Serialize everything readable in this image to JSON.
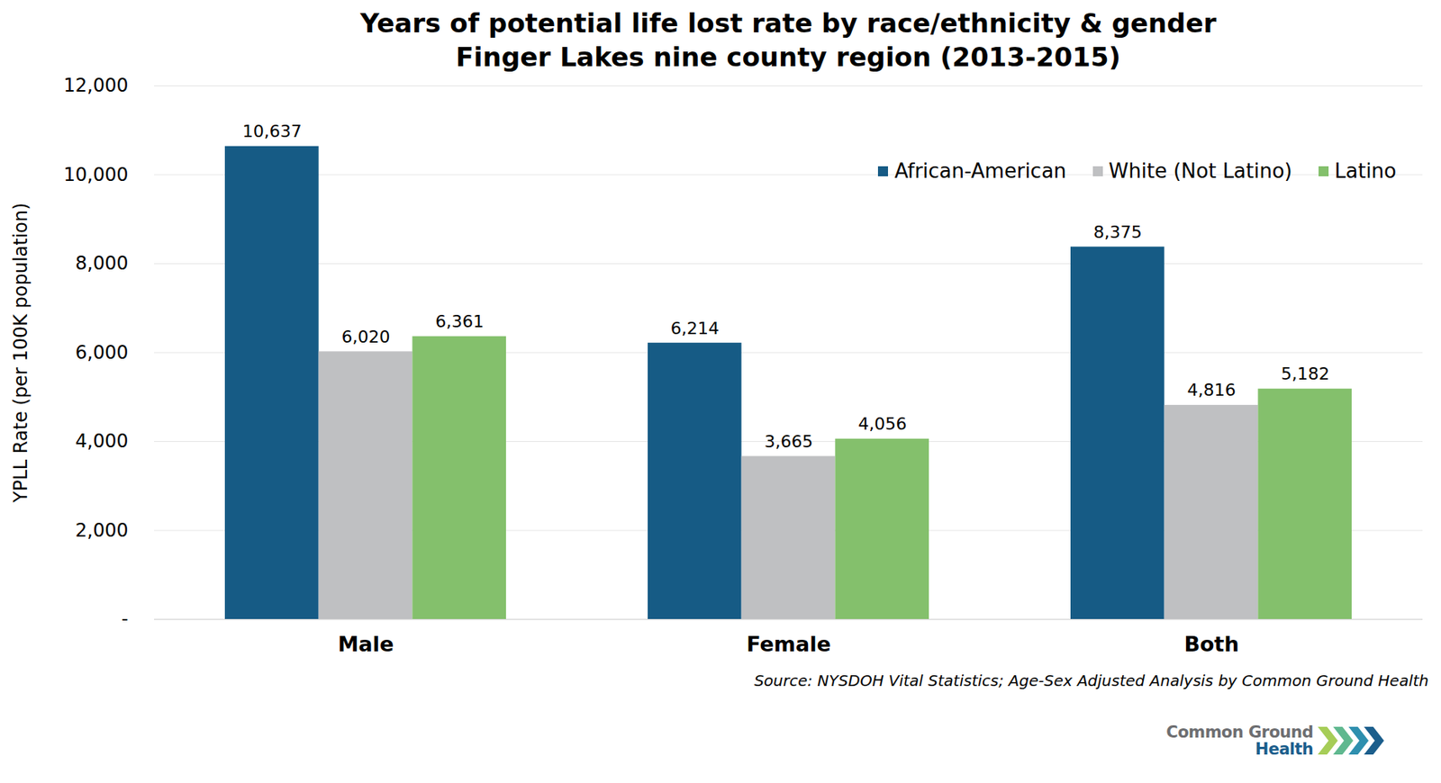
{
  "chart_data": {
    "type": "bar",
    "title": "Years of potential life lost rate by race/ethnicity & gender",
    "subtitle": "Finger Lakes nine county region (2013-2015)",
    "y_label": "YPLL Rate (per 100K population)",
    "source": "Source: NYSDOH Vital Statistics; Age-Sex Adjusted Analysis by Common Ground Health",
    "logo": [
      "Common Ground",
      "Health"
    ],
    "categories": [
      "Male",
      "Female",
      "Both"
    ],
    "series": [
      {
        "name": "African-American",
        "color": "#165b85",
        "values": [
          10637,
          6214,
          8375
        ],
        "value_labels": [
          "10,637",
          "6,214",
          "8,375"
        ]
      },
      {
        "name": "White (Not Latino)",
        "color": "#bfc0c2",
        "values": [
          6020,
          3665,
          4816
        ],
        "value_labels": [
          "6,020",
          "3,665",
          "4,816"
        ]
      },
      {
        "name": "Latino",
        "color": "#84c06c",
        "values": [
          6361,
          4056,
          5182
        ],
        "value_labels": [
          "6,361",
          "4,056",
          "5,182"
        ]
      }
    ],
    "ylim": [
      0,
      12000
    ],
    "yticks": [
      {
        "value": 0,
        "label": "-"
      },
      {
        "value": 2000,
        "label": "2,000"
      },
      {
        "value": 4000,
        "label": "4,000"
      },
      {
        "value": 6000,
        "label": "6,000"
      },
      {
        "value": 8000,
        "label": "8,000"
      },
      {
        "value": 10000,
        "label": "10,000"
      },
      {
        "value": 12000,
        "label": "12,000"
      }
    ],
    "grid": true,
    "legend": "top-right",
    "data_labels": true
  }
}
